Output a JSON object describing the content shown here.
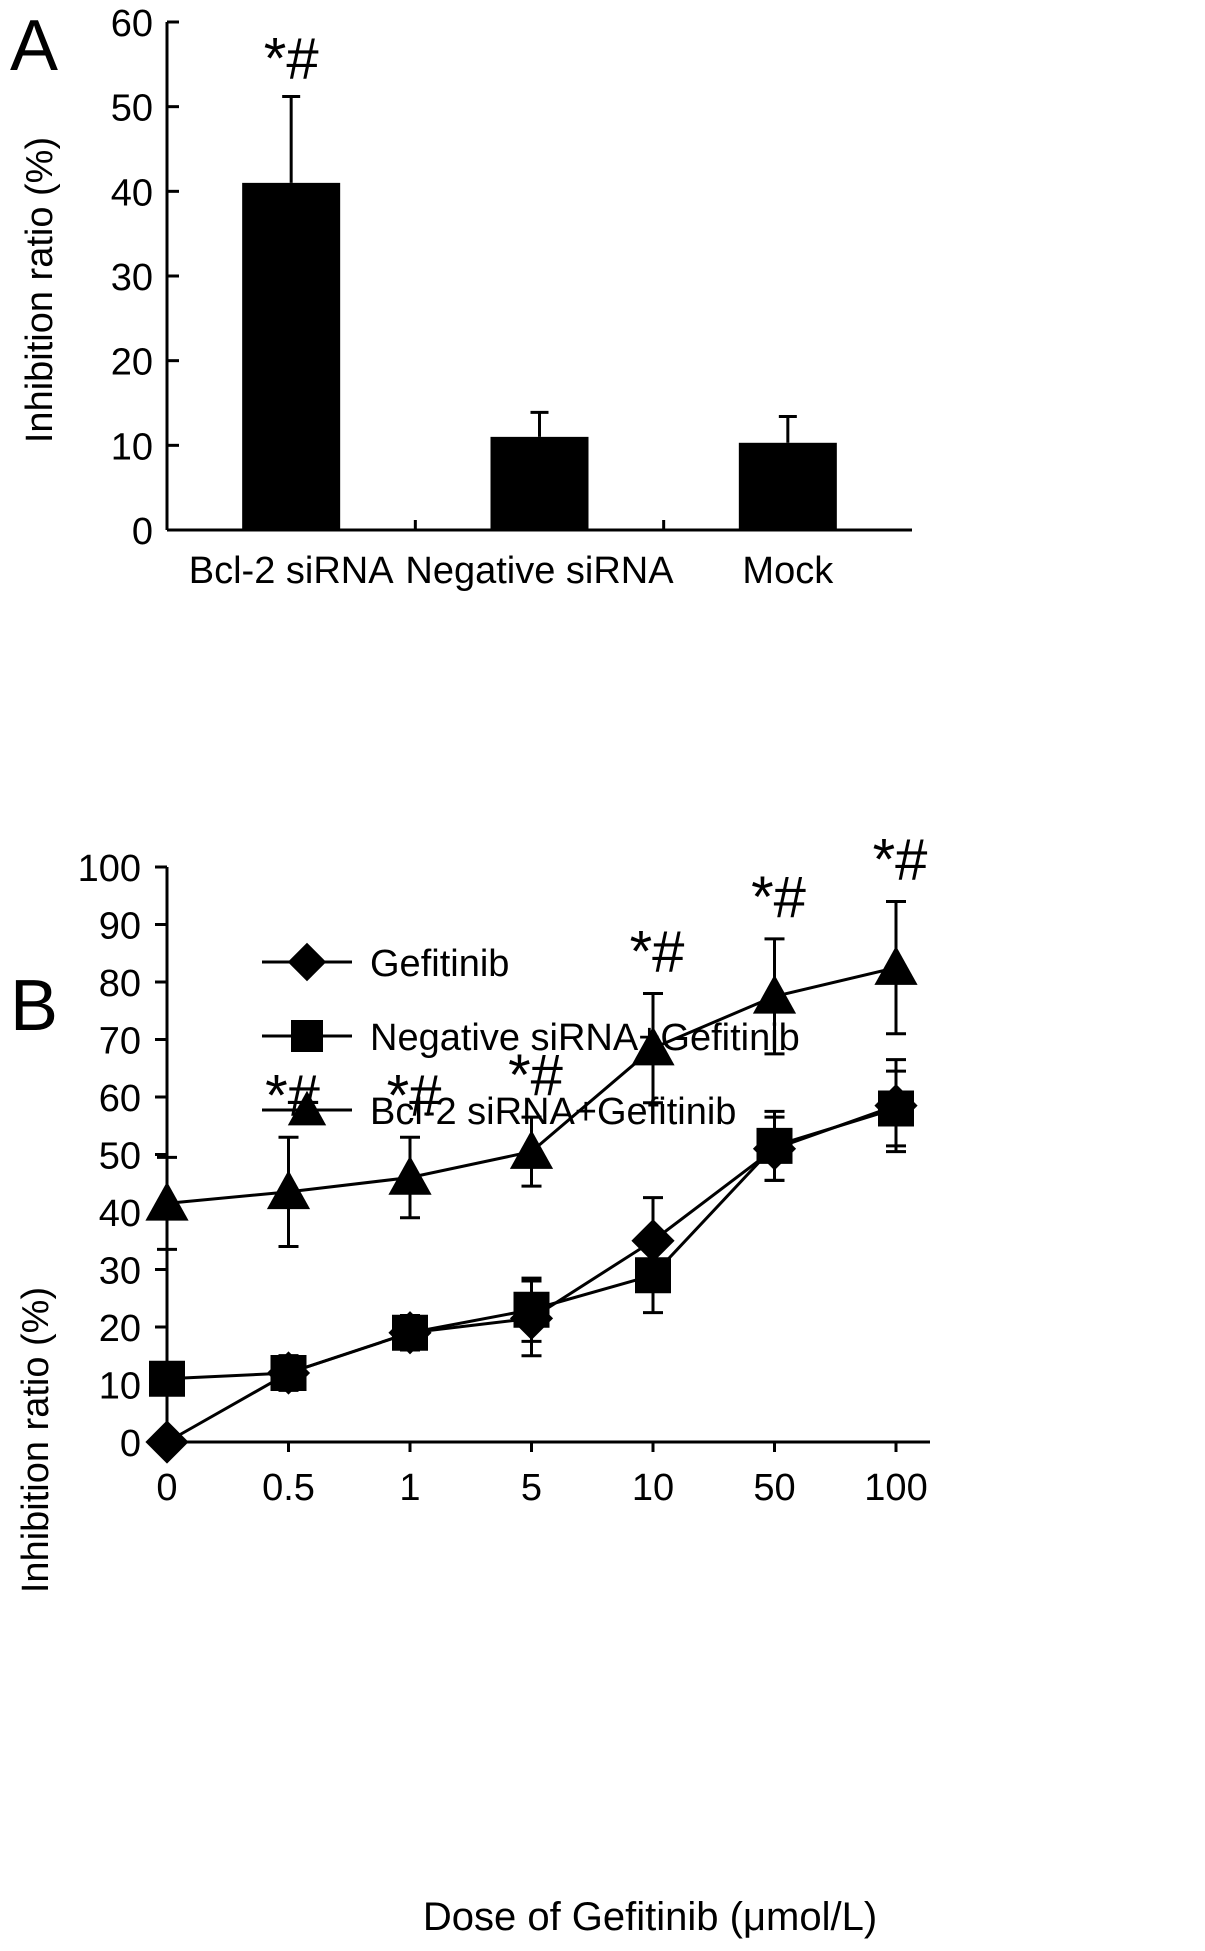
{
  "chart_data": [
    {
      "panel": "A",
      "type": "bar",
      "ylabel": "Inhibition ratio (%)",
      "ylim": [
        0,
        60
      ],
      "yticks": [
        0,
        10,
        20,
        30,
        40,
        50,
        60
      ],
      "categories": [
        "Bcl-2 siRNA",
        "Negative siRNA",
        "Mock"
      ],
      "values": [
        41,
        11,
        10.3
      ],
      "errors": [
        10.2,
        2.9,
        3.1
      ],
      "annotations": [
        "*#",
        "",
        ""
      ],
      "bar_color": "#000000"
    },
    {
      "panel": "B",
      "type": "line",
      "xlabel": "Dose of Gefitinib (μmol/L)",
      "ylabel": "Inhibition ratio (%)",
      "ylim": [
        0,
        100
      ],
      "yticks": [
        0,
        10,
        20,
        30,
        40,
        50,
        60,
        70,
        80,
        90,
        100
      ],
      "categories": [
        "0",
        "0.5",
        "1",
        "5",
        "10",
        "50",
        "100"
      ],
      "legend_position": "top-left",
      "series": [
        {
          "name": "Gefitinib",
          "marker": "diamond",
          "values": [
            0,
            12,
            19,
            21.5,
            35,
            51,
            58.5
          ],
          "errors": [
            0,
            3,
            2.5,
            6.5,
            7.5,
            5.5,
            8
          ]
        },
        {
          "name": "Negative siRNA+Gefitinib",
          "marker": "square",
          "values": [
            11,
            12,
            19,
            23,
            29,
            51.5,
            58
          ],
          "errors": [
            0,
            3,
            3,
            5.5,
            6.5,
            6,
            6.5
          ]
        },
        {
          "name": "Bcl-2 siRNA+Gefitinib",
          "marker": "triangle",
          "values": [
            41.5,
            43.5,
            46,
            50.5,
            68.5,
            77.5,
            82.5
          ],
          "errors": [
            8,
            9.5,
            7,
            6,
            9.5,
            10,
            11.5
          ]
        }
      ],
      "annotations": [
        "",
        "*#",
        "*#",
        "*#",
        "*#",
        "*#",
        "*#"
      ]
    }
  ]
}
